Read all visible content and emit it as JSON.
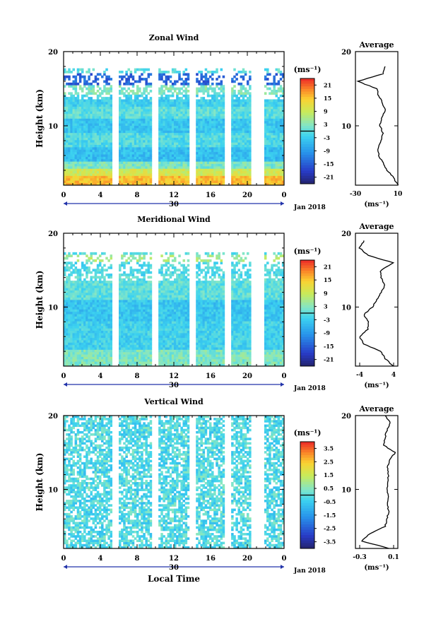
{
  "chart_data": [
    {
      "type": "heatmap",
      "title": "Zonal Wind",
      "ylabel": "Height (km)",
      "x_tick_labels": [
        "0",
        "4",
        "8",
        "12",
        "16",
        "20",
        "0"
      ],
      "xlim": [
        0,
        24
      ],
      "y_tick_labels": [
        "10",
        "20"
      ],
      "ylim": [
        2,
        20
      ],
      "date_label": "30",
      "month_label": "Jan 2018",
      "colorbar": {
        "unit": "(ms⁻¹)",
        "ticks": [
          "21",
          "15",
          "9",
          "3",
          "-3",
          "-9",
          "-15",
          "-21"
        ],
        "range": [
          -24,
          24
        ]
      },
      "profile": {
        "title": "Average",
        "xlabel": "(ms⁻¹)",
        "x_tick_labels": [
          "-30",
          "10"
        ],
        "xlim": [
          -30,
          10
        ],
        "height_km": [
          2,
          3,
          4,
          5,
          6,
          7,
          8,
          9,
          10,
          11,
          12,
          13,
          14,
          15,
          16,
          17,
          18
        ],
        "values": [
          10,
          6,
          0,
          -4,
          -8,
          -9,
          -6,
          -4,
          -7,
          -5,
          -2,
          -4,
          -8,
          -10,
          -28,
          -4,
          -2
        ]
      }
    },
    {
      "type": "heatmap",
      "title": "Meridional Wind",
      "ylabel": "Height (km)",
      "x_tick_labels": [
        "0",
        "4",
        "8",
        "12",
        "16",
        "20",
        "0"
      ],
      "xlim": [
        0,
        24
      ],
      "y_tick_labels": [
        "10",
        "20"
      ],
      "ylim": [
        2,
        20
      ],
      "date_label": "30",
      "month_label": "Jan 2018",
      "colorbar": {
        "unit": "(ms⁻¹)",
        "ticks": [
          "21",
          "15",
          "9",
          "3",
          "-3",
          "-9",
          "-15",
          "-21"
        ],
        "range": [
          -24,
          24
        ]
      },
      "profile": {
        "title": "Average",
        "xlabel": "(ms⁻¹)",
        "x_tick_labels": [
          "-4",
          "4"
        ],
        "xlim": [
          -5,
          5
        ],
        "height_km": [
          2,
          3,
          4,
          5,
          6,
          7,
          8,
          9,
          10,
          11,
          12,
          13,
          14,
          15,
          16,
          17,
          18,
          19
        ],
        "values": [
          4,
          2,
          1,
          -3,
          -4,
          -2,
          -2,
          -3,
          -1,
          0,
          1,
          2,
          1,
          1,
          4,
          -2,
          -4,
          -3
        ]
      }
    },
    {
      "type": "heatmap",
      "title": "Vertical Wind",
      "ylabel": "Height (km)",
      "xlabel": "Local Time",
      "x_tick_labels": [
        "0",
        "4",
        "8",
        "12",
        "16",
        "20",
        "0"
      ],
      "xlim": [
        0,
        24
      ],
      "y_tick_labels": [
        "10",
        "20"
      ],
      "ylim": [
        2,
        20
      ],
      "date_label": "30",
      "month_label": "Jan 2018",
      "colorbar": {
        "unit": "(ms⁻¹)",
        "ticks": [
          "3.5",
          "2.5",
          "1.5",
          "0.5",
          "-0.5",
          "-1.5",
          "-2.5",
          "-3.5"
        ],
        "range": [
          -4,
          4
        ]
      },
      "profile": {
        "title": "Average",
        "xlabel": "(ms⁻¹)",
        "x_tick_labels": [
          "-0.3",
          "0.1"
        ],
        "xlim": [
          -0.35,
          0.15
        ],
        "height_km": [
          2,
          3,
          4,
          5,
          6,
          7,
          8,
          9,
          10,
          11,
          12,
          13,
          14,
          15,
          16,
          17,
          18,
          19,
          20
        ],
        "values": [
          0.05,
          -0.28,
          -0.18,
          0,
          0.02,
          0.04,
          0.03,
          0.04,
          0.02,
          0.03,
          0.04,
          0.03,
          0.05,
          0.12,
          -0.02,
          0.0,
          0.02,
          0.06,
          0.0
        ]
      }
    }
  ]
}
